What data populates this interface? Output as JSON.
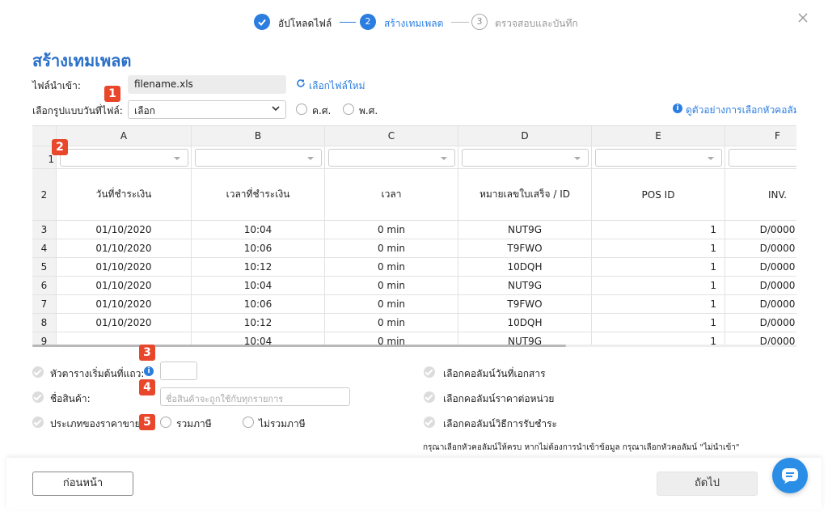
{
  "stepper": {
    "steps": [
      {
        "label": "อัปโหลดไฟล์"
      },
      {
        "number": "2",
        "label": "สร้างเทมเพลต"
      },
      {
        "number": "3",
        "label": "ตรวจสอบและบันทึก"
      }
    ]
  },
  "title": "สร้างเทมเพลต",
  "file": {
    "label": "ไฟล์นำเข้า:",
    "filename": "filename.xls",
    "change_link": "เลือกไฟล์ใหม่"
  },
  "date_format": {
    "label": "เลือกรูปแบบวันที่ไฟล์:",
    "select": "เลือก",
    "options": [
      "ค.ศ.",
      "พ.ศ."
    ]
  },
  "help_link": "ดูตัวอย่างการเลือกหัวคอลัมน์",
  "badges": [
    "1",
    "2",
    "3",
    "4",
    "5"
  ],
  "table": {
    "columns": [
      "A",
      "B",
      "C",
      "D",
      "E",
      "F"
    ],
    "row_numbers": [
      1,
      2,
      3,
      4,
      5,
      6,
      7,
      8,
      9
    ],
    "header_row": [
      "วันที่ชำระเงิน",
      "เวลาที่ชำระเงิน",
      "เวลา",
      "หมายเลขใบเสร็จ / ID",
      "POS ID",
      "INV."
    ],
    "rows": [
      [
        "01/10/2020",
        "10:04",
        "0 min",
        "NUT9G",
        1,
        "D/0000"
      ],
      [
        "01/10/2020",
        "10:06",
        "0 min",
        "T9FWO",
        1,
        "D/0000"
      ],
      [
        "01/10/2020",
        "10:12",
        "0 min",
        "10DQH",
        1,
        "D/0000"
      ],
      [
        "01/10/2020",
        "10:04",
        "0 min",
        "NUT9G",
        1,
        "D/0000"
      ],
      [
        "01/10/2020",
        "10:06",
        "0 min",
        "T9FWO",
        1,
        "D/0000"
      ],
      [
        "01/10/2020",
        "10:12",
        "0 min",
        "10DQH",
        1,
        "D/0000"
      ],
      [
        null,
        "10:04",
        "0 min",
        "NUT9G",
        1,
        "D/0000"
      ]
    ]
  },
  "settings": {
    "header_start": "หัวตารางเริ่มต้นที่แถว:",
    "product_name": {
      "label": "ชื่อสินค้า:",
      "placeholder": "ชื่อสินค้าจะถูกใช้กับทุกรายการ"
    },
    "price_type": {
      "label": "ประเภทของราคาขาย:",
      "options": [
        "รวมภาษี",
        "ไม่รวมภาษี"
      ]
    }
  },
  "column_checks": [
    "เลือกคอลัมน์วันที่เอกสาร",
    "เลือกคอลัมน์ราคาต่อหน่วย",
    "เลือกคอลัมน์วิธีการรับชำระ"
  ],
  "note": "กรุณาเลือกหัวคอลัมน์ให้ครบ หากไม่ต้องการนำเข้าข้อมูล กรุณาเลือกหัวคอลัมน์ \"ไม่นำเข้า\"",
  "footer": {
    "back": "ก่อนหน้า",
    "next": "ถัดไป"
  }
}
